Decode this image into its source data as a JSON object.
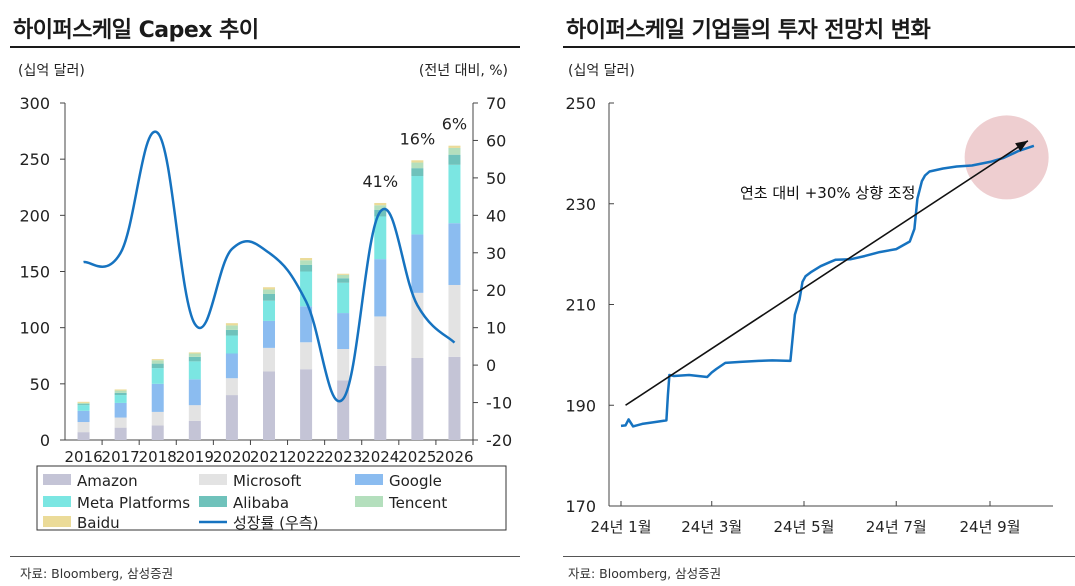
{
  "chart_data": [
    {
      "type": "bar",
      "title": "하이퍼스케일 Capex 추이",
      "ylabel_left": "(십억 달러)",
      "ylabel_right": "(전년 대비, %)",
      "categories": [
        "2016",
        "2017",
        "2018",
        "2019",
        "2020",
        "2021",
        "2022",
        "2023",
        "2024",
        "2025",
        "2026"
      ],
      "ylim": [
        0,
        300
      ],
      "yticks": [
        "0",
        "50",
        "100",
        "150",
        "200",
        "250",
        "300"
      ],
      "y2lim": [
        -20,
        70
      ],
      "y2ticks": [
        "-20",
        "-10",
        "0",
        "10",
        "20",
        "30",
        "40",
        "50",
        "60",
        "70"
      ],
      "stacked": true,
      "series": [
        {
          "name": "Amazon",
          "color": "#c4c4d6",
          "values": [
            7,
            11,
            13,
            17,
            40,
            61,
            63,
            53,
            66,
            73,
            74
          ]
        },
        {
          "name": "Microsoft",
          "color": "#e3e3e3",
          "values": [
            9,
            9,
            12,
            14,
            15,
            21,
            24,
            28,
            44,
            58,
            64
          ]
        },
        {
          "name": "Google",
          "color": "#8bbcf0",
          "values": [
            10,
            13,
            25,
            23,
            22,
            24,
            32,
            32,
            51,
            52,
            55
          ]
        },
        {
          "name": "Meta Platforms",
          "color": "#7be6e2",
          "values": [
            5,
            7,
            14,
            16,
            16,
            18,
            31,
            27,
            38,
            52,
            52
          ]
        },
        {
          "name": "Alibaba",
          "color": "#6fc2bb",
          "values": [
            1,
            2,
            4,
            4,
            5,
            6,
            6,
            4,
            6,
            7,
            9
          ]
        },
        {
          "name": "Tencent",
          "color": "#b4dfbd",
          "values": [
            1,
            2,
            3,
            3,
            4,
            4,
            4,
            3,
            4,
            5,
            6
          ]
        },
        {
          "name": "Baidu",
          "color": "#ebdb99",
          "values": [
            1,
            1,
            1,
            1,
            2,
            2,
            2,
            1,
            2,
            2,
            2
          ]
        }
      ],
      "line": {
        "name": "성장률 (우측)",
        "color": "#1673c0",
        "axis": "right",
        "values": [
          27.5,
          30,
          62,
          11,
          31,
          30,
          17,
          -9,
          41,
          16,
          6
        ]
      },
      "annotations": [
        {
          "category": "2024",
          "text": "41%"
        },
        {
          "category": "2025",
          "text": "16%"
        },
        {
          "category": "2026",
          "text": "6%"
        }
      ],
      "legend": {
        "placement": "bottom",
        "columns": 3
      }
    },
    {
      "type": "line",
      "title": "하이퍼스케일 기업들의 투자 전망치 변화",
      "ylabel": "(십억 달러)",
      "ylim": [
        170,
        250
      ],
      "yticks": [
        "170",
        "190",
        "210",
        "230",
        "250"
      ],
      "xticks": [
        "24년 1월",
        "24년 3월",
        "24년 5월",
        "24년 7월",
        "24년 9월"
      ],
      "series": [
        {
          "name": "",
          "color": "#1673c0",
          "x": [
            "2024-01-01",
            "2024-01-04",
            "2024-01-06",
            "2024-01-09",
            "2024-01-15",
            "2024-01-22",
            "2024-01-31",
            "2024-02-01",
            "2024-02-02",
            "2024-02-05",
            "2024-02-15",
            "2024-02-27",
            "2024-03-01",
            "2024-03-04",
            "2024-03-10",
            "2024-03-20",
            "2024-04-01",
            "2024-04-10",
            "2024-04-22",
            "2024-04-25",
            "2024-04-28",
            "2024-04-30",
            "2024-05-02",
            "2024-05-06",
            "2024-05-12",
            "2024-05-18",
            "2024-05-22",
            "2024-06-01",
            "2024-06-10",
            "2024-06-20",
            "2024-07-01",
            "2024-07-10",
            "2024-07-13",
            "2024-07-15",
            "2024-07-18",
            "2024-07-20",
            "2024-07-23",
            "2024-08-01",
            "2024-08-10",
            "2024-08-20",
            "2024-09-01",
            "2024-09-10",
            "2024-09-20",
            "2024-09-30"
          ],
          "values": [
            185.9,
            186.0,
            187.2,
            185.8,
            186.3,
            186.6,
            187.0,
            192.0,
            196.0,
            195.8,
            196.0,
            195.6,
            196.5,
            197.2,
            198.4,
            198.6,
            198.8,
            198.9,
            198.8,
            208.0,
            211.0,
            214.5,
            215.6,
            216.5,
            217.6,
            218.4,
            218.9,
            219.0,
            219.6,
            220.4,
            221.0,
            222.5,
            225.0,
            231.0,
            234.5,
            235.6,
            236.4,
            237.0,
            237.4,
            237.6,
            238.3,
            239.1,
            240.5,
            241.5
          ]
        }
      ],
      "trend": {
        "from": [
          "2024-01-04",
          190
        ],
        "to": [
          "2024-09-30",
          242.5
        ],
        "label": "연초 대비 +30%  상향 조정"
      }
    }
  ],
  "source_left": "자료: Bloomberg, 삼성증권",
  "source_right": "자료: Bloomberg, 삼성증권"
}
